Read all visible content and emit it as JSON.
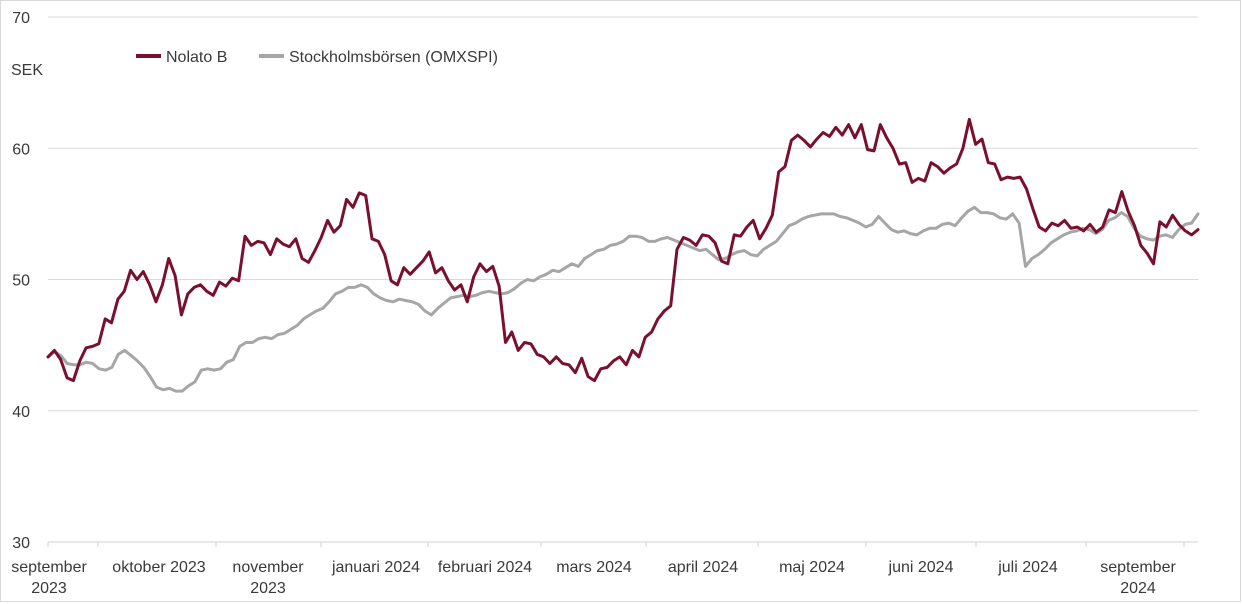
{
  "chart_data": {
    "type": "line",
    "ylabel": "SEK",
    "ylim": [
      30,
      70
    ],
    "yticks": [
      30,
      40,
      50,
      60,
      70
    ],
    "grid": "horizontal",
    "legend_position": "top-left",
    "x_labels": [
      [
        "september",
        "2023"
      ],
      [
        "oktober 2023"
      ],
      [
        "november",
        "2023"
      ],
      [
        "januari 2024"
      ],
      [
        "februari 2024"
      ],
      [
        "mars 2024"
      ],
      [
        "april 2024"
      ],
      [
        "maj 2024"
      ],
      [
        "juni 2024"
      ],
      [
        "juli 2024"
      ],
      [
        "september",
        "2024"
      ]
    ],
    "series": [
      {
        "name": "Nolato B",
        "color": "#7a0f2e",
        "values": [
          44.1,
          44.6,
          43.9,
          42.5,
          42.3,
          43.8,
          44.8,
          44.9,
          45.1,
          47.0,
          46.7,
          48.5,
          49.1,
          50.7,
          50.0,
          50.6,
          49.6,
          48.3,
          49.6,
          51.6,
          50.3,
          47.3,
          48.9,
          49.4,
          49.6,
          49.1,
          48.8,
          49.8,
          49.5,
          50.1,
          49.9,
          53.3,
          52.6,
          52.9,
          52.8,
          51.9,
          53.1,
          52.7,
          52.5,
          53.1,
          51.6,
          51.3,
          52.2,
          53.2,
          54.5,
          53.6,
          54.1,
          56.1,
          55.5,
          56.6,
          56.4,
          53.1,
          52.9,
          51.9,
          49.9,
          49.6,
          50.9,
          50.4,
          50.9,
          51.4,
          52.1,
          50.5,
          50.9,
          49.9,
          49.2,
          49.6,
          48.3,
          50.2,
          51.2,
          50.6,
          51.0,
          49.5,
          45.2,
          46.0,
          44.6,
          45.2,
          45.1,
          44.3,
          44.1,
          43.6,
          44.1,
          43.6,
          43.5,
          42.9,
          44.0,
          42.6,
          42.3,
          43.2,
          43.3,
          43.8,
          44.1,
          43.5,
          44.6,
          44.1,
          45.6,
          46.0,
          47.0,
          47.6,
          48.0,
          52.3,
          53.2,
          53.0,
          52.6,
          53.4,
          53.3,
          52.8,
          51.4,
          51.2,
          53.4,
          53.3,
          54.0,
          54.5,
          53.1,
          53.9,
          54.9,
          58.2,
          58.6,
          60.6,
          61.0,
          60.6,
          60.1,
          60.7,
          61.2,
          60.9,
          61.6,
          61.0,
          61.8,
          60.8,
          61.8,
          59.9,
          59.8,
          61.8,
          60.8,
          60.0,
          58.8,
          58.9,
          57.4,
          57.7,
          57.5,
          58.9,
          58.6,
          58.1,
          58.5,
          58.8,
          60.0,
          62.2,
          60.3,
          60.7,
          58.9,
          58.8,
          57.6,
          57.8,
          57.7,
          57.8,
          56.9,
          55.4,
          54.0,
          53.7,
          54.3,
          54.1,
          54.5,
          53.9,
          54.0,
          53.7,
          54.2,
          53.6,
          54.0,
          55.3,
          55.1,
          56.7,
          55.2,
          54.1,
          52.6,
          52.0,
          51.2,
          54.4,
          54.0,
          54.9,
          54.2,
          53.7,
          53.4,
          53.8
        ]
      },
      {
        "name": "Stockholmsbörsen (OMXSPI)",
        "color": "#a6a6a6",
        "values": [
          44.1,
          44.5,
          44.2,
          43.6,
          43.5,
          43.5,
          43.7,
          43.6,
          43.2,
          43.1,
          43.3,
          44.3,
          44.6,
          44.2,
          43.8,
          43.3,
          42.6,
          41.8,
          41.6,
          41.7,
          41.5,
          41.5,
          41.9,
          42.2,
          43.1,
          43.2,
          43.1,
          43.2,
          43.7,
          43.9,
          44.9,
          45.2,
          45.2,
          45.5,
          45.6,
          45.5,
          45.8,
          45.9,
          46.2,
          46.5,
          47.0,
          47.3,
          47.6,
          47.8,
          48.3,
          48.9,
          49.1,
          49.4,
          49.4,
          49.6,
          49.4,
          48.9,
          48.6,
          48.4,
          48.3,
          48.5,
          48.4,
          48.3,
          48.1,
          47.6,
          47.3,
          47.8,
          48.2,
          48.6,
          48.7,
          48.8,
          48.7,
          48.8,
          49.0,
          49.1,
          49.0,
          48.9,
          49.0,
          49.3,
          49.7,
          50.0,
          49.9,
          50.2,
          50.4,
          50.7,
          50.6,
          50.9,
          51.2,
          51.0,
          51.6,
          51.9,
          52.2,
          52.3,
          52.6,
          52.7,
          52.9,
          53.3,
          53.3,
          53.2,
          52.9,
          52.9,
          53.1,
          53.2,
          53.0,
          52.8,
          52.6,
          52.4,
          52.2,
          52.3,
          51.9,
          51.5,
          51.6,
          51.9,
          52.1,
          52.2,
          51.9,
          51.8,
          52.3,
          52.6,
          52.9,
          53.5,
          54.1,
          54.3,
          54.6,
          54.8,
          54.9,
          55.0,
          55.0,
          55.0,
          54.8,
          54.7,
          54.5,
          54.3,
          54.0,
          54.2,
          54.8,
          54.3,
          53.8,
          53.6,
          53.7,
          53.5,
          53.4,
          53.7,
          53.9,
          53.9,
          54.2,
          54.3,
          54.1,
          54.7,
          55.2,
          55.5,
          55.1,
          55.1,
          55.0,
          54.7,
          54.6,
          55.0,
          54.3,
          51.0,
          51.6,
          51.9,
          52.3,
          52.8,
          53.1,
          53.4,
          53.6,
          53.7,
          53.9,
          53.8,
          53.5,
          53.8,
          54.5,
          54.7,
          55.1,
          54.8,
          53.9,
          53.3,
          53.1,
          53.0,
          53.3,
          53.4,
          53.2,
          53.8,
          54.2,
          54.3,
          55.0
        ]
      }
    ]
  }
}
